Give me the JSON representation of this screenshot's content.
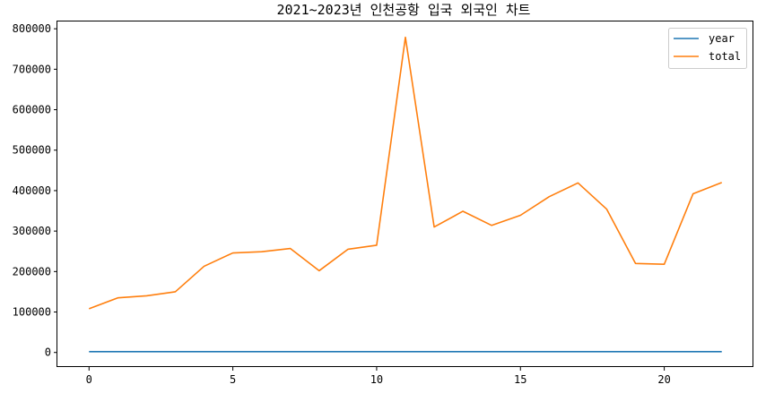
{
  "chart_data": {
    "type": "line",
    "title": "2021~2023년 인천공항 입국 외국인 차트",
    "xlabel": "",
    "ylabel": "",
    "x": [
      0,
      1,
      2,
      3,
      4,
      5,
      6,
      7,
      8,
      9,
      10,
      11,
      12,
      13,
      14,
      15,
      16,
      17,
      18,
      19,
      20,
      21,
      22
    ],
    "xlim": [
      -1.1,
      23.1
    ],
    "ylim": [
      -36000,
      818000
    ],
    "xticks": [
      0,
      5,
      10,
      15,
      20
    ],
    "yticks": [
      0,
      100000,
      200000,
      300000,
      400000,
      500000,
      600000,
      700000,
      800000
    ],
    "grid": false,
    "legend_position": "top-right",
    "series": [
      {
        "name": "year",
        "color": "#1f77b4",
        "values": [
          2021,
          2021,
          2021,
          2021,
          2021,
          2021,
          2021,
          2021,
          2021,
          2021,
          2021,
          2021,
          2022,
          2022,
          2022,
          2022,
          2022,
          2022,
          2022,
          2022,
          2022,
          2022,
          2023
        ]
      },
      {
        "name": "total",
        "color": "#ff7f0e",
        "values": [
          108000,
          135000,
          140000,
          150000,
          213000,
          246000,
          249000,
          257000,
          202000,
          255000,
          265000,
          779000,
          310000,
          349000,
          314000,
          339000,
          385000,
          419000,
          354000,
          220000,
          218000,
          392000,
          420000
        ]
      }
    ]
  }
}
